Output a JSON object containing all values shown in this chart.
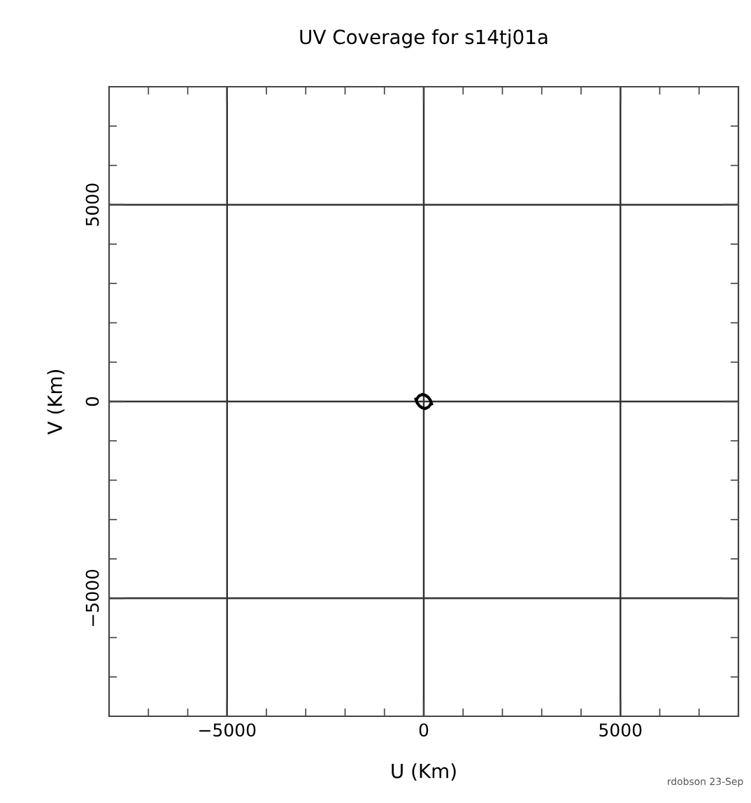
{
  "chart_data": {
    "type": "line",
    "title": "UV Coverage for s14tj01a",
    "xlabel": "U (Km)",
    "ylabel": "V (Km)",
    "series": [
      {
        "color": "#000000",
        "x": [
          -180,
          -120,
          -40,
          40,
          110,
          170,
          200
        ],
        "values": [
          60,
          140,
          180,
          160,
          110,
          30,
          -60
        ]
      },
      {
        "color": "#000000",
        "x": [
          180,
          120,
          40,
          -40,
          -110,
          -170,
          -200
        ],
        "values": [
          -60,
          -140,
          -180,
          -160,
          -110,
          -30,
          60
        ]
      }
    ],
    "xlim": [
      -8000,
      8000
    ],
    "ylim": [
      -8000,
      8000
    ],
    "xticks": [
      {
        "value": -7000,
        "label": null
      },
      {
        "value": -6000,
        "label": null
      },
      {
        "value": -5000,
        "label": "−5000"
      },
      {
        "value": -4000,
        "label": null
      },
      {
        "value": -3000,
        "label": null
      },
      {
        "value": -2000,
        "label": null
      },
      {
        "value": -1000,
        "label": null
      },
      0,
      {
        "value": 1000,
        "label": null
      },
      {
        "value": 2000,
        "label": null
      },
      {
        "value": 3000,
        "label": null
      },
      {
        "value": 4000,
        "label": null
      },
      5000,
      {
        "value": 6000,
        "label": null
      },
      {
        "value": 7000,
        "label": null
      }
    ],
    "yticks": [
      {
        "value": -7000,
        "label": null
      },
      {
        "value": -6000,
        "label": null
      },
      {
        "value": -5000,
        "label": "−5000"
      },
      {
        "value": -4000,
        "label": null
      },
      {
        "value": -3000,
        "label": null
      },
      {
        "value": -2000,
        "label": null
      },
      {
        "value": -1000,
        "label": null
      },
      0,
      {
        "value": 1000,
        "label": null
      },
      {
        "value": 2000,
        "label": null
      },
      {
        "value": 3000,
        "label": null
      },
      {
        "value": 4000,
        "label": null
      },
      5000,
      {
        "value": 6000,
        "label": null
      },
      {
        "value": 7000,
        "label": null
      }
    ],
    "grid": true,
    "marker": "none",
    "line_style": "solid",
    "legend": false,
    "annotations": [
      "rdobson 23-Sep"
    ]
  }
}
